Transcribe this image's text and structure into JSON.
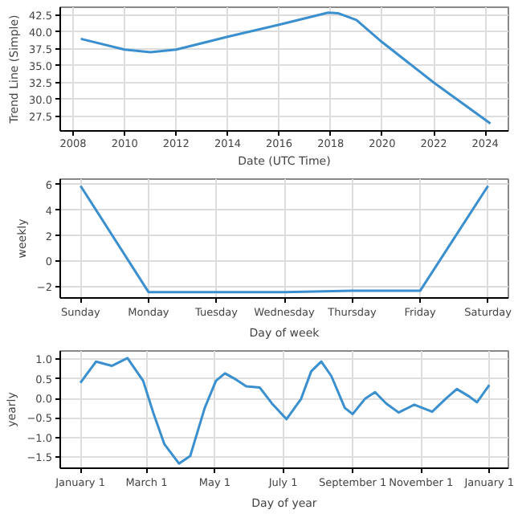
{
  "chart_data": [
    {
      "type": "line",
      "xlabel": "Date (UTC Time)",
      "ylabel": "Trend Line (Simple)",
      "x": [
        2008.3,
        2010,
        2011,
        2012,
        2014,
        2016,
        2017.9,
        2018.3,
        2019,
        2020,
        2022,
        2024.2
      ],
      "series": [
        {
          "color": "#3a8fcf",
          "values": [
            39.0,
            37.4,
            37.0,
            37.4,
            39.3,
            41.1,
            42.9,
            42.8,
            41.8,
            38.5,
            32.5,
            26.4
          ]
        }
      ],
      "xlim": [
        2007.5,
        2024.9
      ],
      "ylim": [
        25.3,
        43.7
      ],
      "xticks": [
        2008,
        2010,
        2012,
        2014,
        2016,
        2018,
        2020,
        2022,
        2024
      ],
      "yticks": [
        {
          "value": 27.5,
          "label": "27.5"
        },
        {
          "value": 30,
          "label": "30.0"
        },
        {
          "value": 32.5,
          "label": "32.5"
        },
        {
          "value": 35,
          "label": "35.0"
        },
        {
          "value": 37.5,
          "label": "37.5"
        },
        {
          "value": 40,
          "label": "40.0"
        },
        {
          "value": 42.5,
          "label": "42.5"
        }
      ],
      "grid": true
    },
    {
      "type": "line",
      "xlabel": "Day of week",
      "ylabel": "weekly",
      "categories": [
        "Sunday",
        "Monday",
        "Tuesday",
        "Wednesday",
        "Thursday",
        "Friday",
        "Saturday"
      ],
      "series": [
        {
          "color": "#3a8fcf",
          "values": [
            5.9,
            -2.4,
            -2.4,
            -2.4,
            -2.3,
            -2.3,
            5.9
          ]
        }
      ],
      "ylim": [
        -2.86,
        6.43
      ],
      "yticks": [
        {
          "value": -2,
          "label": "−2"
        },
        0,
        2,
        4,
        6
      ],
      "grid": true
    },
    {
      "type": "line",
      "xlabel": "Day of year",
      "ylabel": "yearly",
      "x": [
        "2017-01-01",
        "2017-01-15",
        "2017-01-29",
        "2017-02-12",
        "2017-02-26",
        "2017-03-07",
        "2017-03-17",
        "2017-03-30",
        "2017-04-09",
        "2017-04-22",
        "2017-05-02",
        "2017-05-10",
        "2017-05-20",
        "2017-05-29",
        "2017-06-10",
        "2017-06-21",
        "2017-07-04",
        "2017-07-17",
        "2017-07-26",
        "2017-08-04",
        "2017-08-13",
        "2017-08-25",
        "2017-09-01",
        "2017-09-12",
        "2017-09-21",
        "2017-10-01",
        "2017-10-12",
        "2017-10-26",
        "2017-11-11",
        "2017-11-23",
        "2017-12-03",
        "2017-12-14",
        "2017-12-21",
        "2018-01-01"
      ],
      "series": [
        {
          "color": "#3a8fcf",
          "values": [
            0.4,
            0.94,
            0.83,
            1.03,
            0.45,
            -0.36,
            -1.17,
            -1.66,
            -1.47,
            -0.24,
            0.45,
            0.64,
            0.48,
            0.31,
            0.28,
            -0.13,
            -0.53,
            -0.01,
            0.69,
            0.94,
            0.57,
            -0.24,
            -0.4,
            -0.01,
            0.16,
            -0.13,
            -0.36,
            -0.16,
            -0.34,
            -0.01,
            0.24,
            0.05,
            -0.1,
            0.34
          ]
        }
      ],
      "xlim": [
        "2016-12-14",
        "2018-01-18"
      ],
      "ylim": [
        -1.78,
        1.21
      ],
      "xticks": [
        {
          "value": "2017-01-01",
          "label": "January 1"
        },
        {
          "value": "2017-03-01",
          "label": "March 1"
        },
        {
          "value": "2017-05-01",
          "label": "May 1"
        },
        {
          "value": "2017-07-01",
          "label": "July 1"
        },
        {
          "value": "2017-09-01",
          "label": "September 1"
        },
        {
          "value": "2017-11-01",
          "label": "November 1"
        },
        {
          "value": "2018-01-01",
          "label": "January 1"
        }
      ],
      "yticks": [
        {
          "value": -1.5,
          "label": "−1.5"
        },
        {
          "value": -1,
          "label": "−1.0"
        },
        {
          "value": -0.5,
          "label": "−0.5"
        },
        {
          "value": 0,
          "label": "0.0"
        },
        {
          "value": 0.5,
          "label": "0.5"
        },
        {
          "value": 1,
          "label": "1.0"
        }
      ],
      "grid": true
    }
  ]
}
